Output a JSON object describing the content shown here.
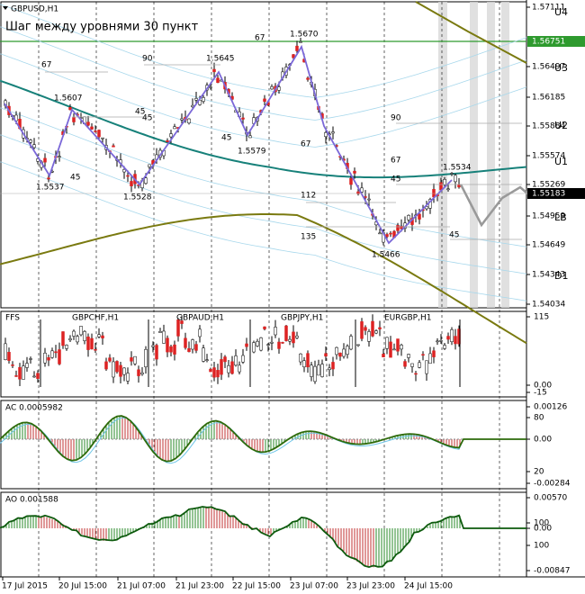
{
  "symbol": "GBPUSD,H1",
  "subtitle": "Шаг между уровнями 30 пункт",
  "price_axis": [
    "1.57111",
    "1.56497",
    "1.56185",
    "1.55884",
    "1.55574",
    "1.55269",
    "1.54959",
    "1.54649",
    "1.54343",
    "1.54034"
  ],
  "level_price": "1.56751",
  "current_price": "1.55183",
  "levels": [
    "U4",
    "U3",
    "U2",
    "U1",
    "LB",
    "D1"
  ],
  "annotations": [
    "67",
    "1.5670",
    "90",
    "1.5645",
    "67",
    "1.5607",
    "45",
    "45",
    "1.5537",
    "45",
    "1.5528",
    "45",
    "1.5579",
    "67",
    "90",
    "67",
    "1.5534",
    "45",
    "112",
    "135",
    "45",
    "1.5466"
  ],
  "panes": [
    {
      "label": "FFS",
      "axis": [
        "115",
        "0.00",
        "-15"
      ]
    },
    {
      "label": "AC 0.0005982",
      "axis": [
        "0.00126",
        "80",
        "0.00",
        "20",
        "-0.00284"
      ]
    },
    {
      "label": "AO 0.001588",
      "axis": [
        "0.00570",
        "100",
        "0.00",
        "100",
        "-0.00847"
      ]
    }
  ],
  "pairs": [
    "GBPCHF,H1",
    "GBPAUD,H1",
    "GBPJPY,H1",
    "EURGBP,H1"
  ],
  "dates": [
    "17 Jul 2015",
    "20 Jul 15:00",
    "21 Jul 07:00",
    "21 Jul 23:00",
    "22 Jul 15:00",
    "23 Jul 07:00",
    "23 Jul 23:00",
    "24 Jul 15:00"
  ]
}
